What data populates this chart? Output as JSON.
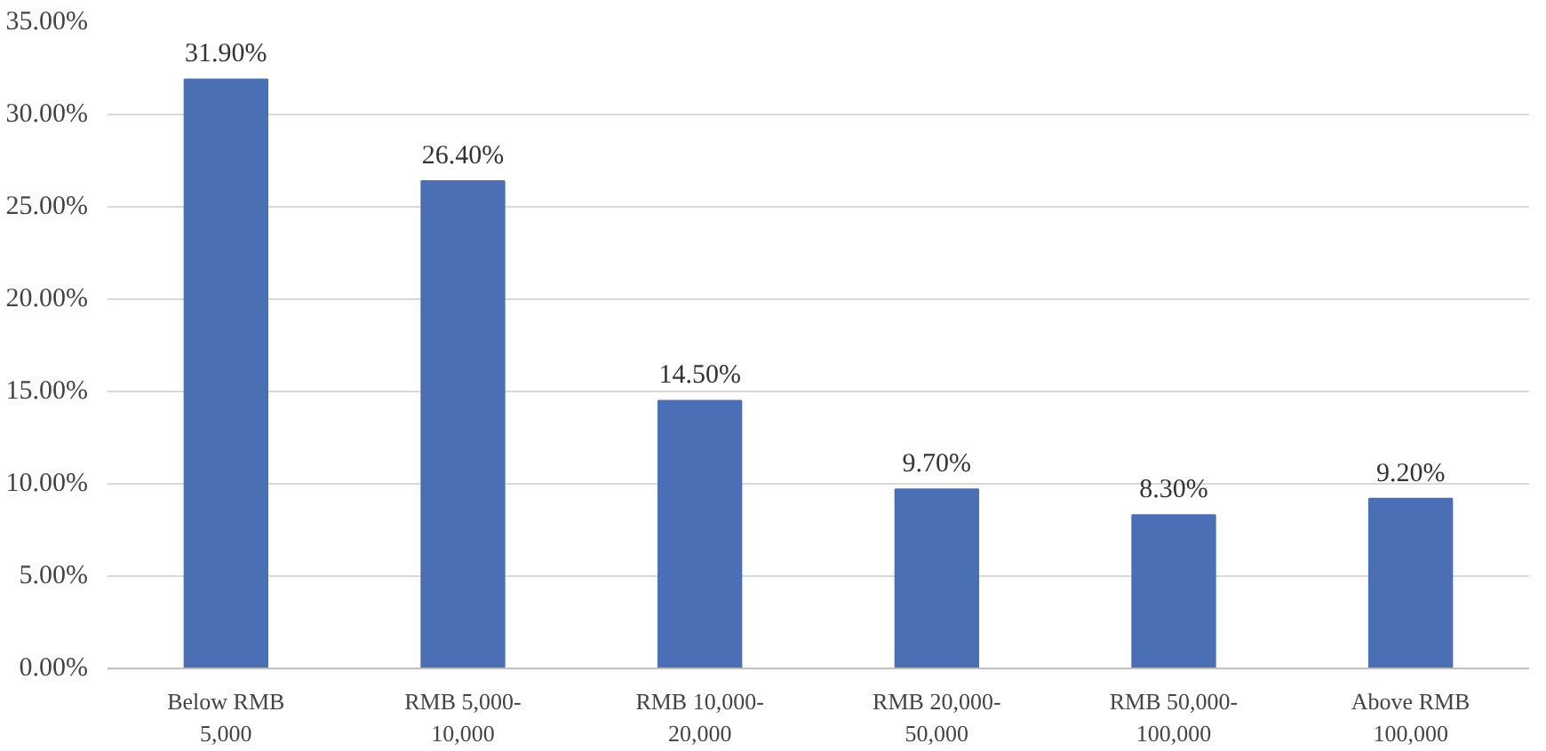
{
  "chart_data": {
    "type": "bar",
    "categories": [
      "Below RMB\n5,000",
      "RMB 5,000-\n10,000",
      "RMB 10,000-\n20,000",
      "RMB 20,000-\n50,000",
      "RMB 50,000-\n100,000",
      "Above RMB\n100,000"
    ],
    "values": [
      31.9,
      26.4,
      14.5,
      9.7,
      8.3,
      9.2
    ],
    "value_labels": [
      "31.90%",
      "26.40%",
      "14.50%",
      "9.70%",
      "8.30%",
      "9.20%"
    ],
    "color": "#4a6fb5",
    "ylim": [
      0,
      35
    ],
    "yticks": [
      {
        "value": 0,
        "label": "0.00%"
      },
      {
        "value": 5,
        "label": "5.00%"
      },
      {
        "value": 10,
        "label": "10.00%"
      },
      {
        "value": 15,
        "label": "15.00%"
      },
      {
        "value": 20,
        "label": "20.00%"
      },
      {
        "value": 25,
        "label": "25.00%"
      },
      {
        "value": 30,
        "label": "30.00%"
      },
      {
        "value": 35,
        "label": "35.00%"
      }
    ],
    "grid": "y"
  }
}
